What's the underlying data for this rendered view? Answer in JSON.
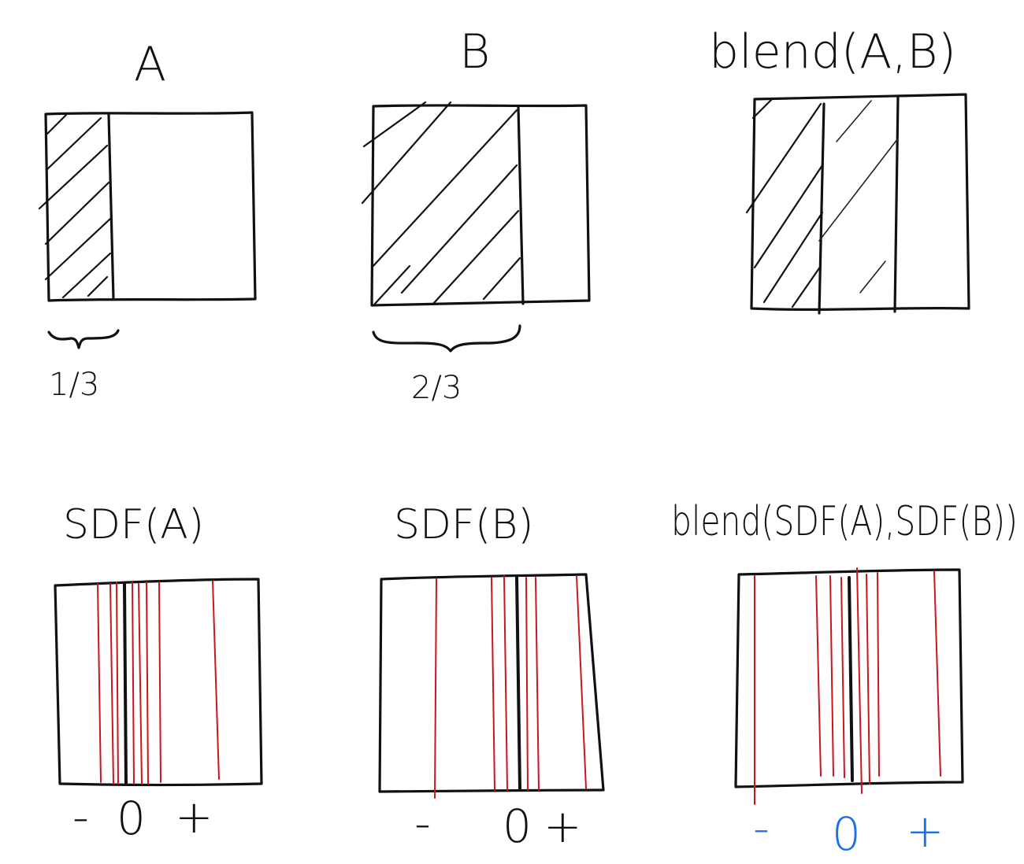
{
  "top_row": {
    "a": {
      "title": "A",
      "fraction": "1/3"
    },
    "b": {
      "title": "B",
      "fraction": "2/3"
    },
    "blend": {
      "title": "blend(A,B)"
    }
  },
  "bottom_row": {
    "sdf_a": {
      "title": "SDF(A)",
      "sign_minus": "-",
      "sign_zero": "0",
      "sign_plus": "+"
    },
    "sdf_b": {
      "title": "SDF(B)",
      "sign_minus": "-",
      "sign_zero": "0",
      "sign_plus": "+"
    },
    "blend_sdf": {
      "title": "blend(SDF(A),SDF(B))",
      "sign_minus": "-",
      "sign_zero": "0",
      "sign_plus": "+"
    }
  },
  "colors": {
    "ink": "#111111",
    "isoline": "#c8161d",
    "sign_highlight": "#1e6fe6"
  }
}
